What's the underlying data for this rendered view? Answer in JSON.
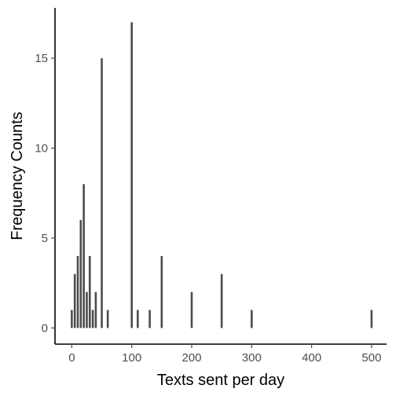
{
  "chart_data": {
    "type": "bar",
    "title": "",
    "xlabel": "Texts sent per day",
    "ylabel": "Frequency Counts",
    "xlim": [
      -28,
      525
    ],
    "ylim": [
      -0.9,
      17.8
    ],
    "x_ticks": [
      0,
      100,
      200,
      300,
      400,
      500
    ],
    "x_tick_labels": [
      "0",
      "100",
      "200",
      "300",
      "400",
      "500"
    ],
    "y_ticks": [
      0,
      5,
      10,
      15
    ],
    "y_tick_labels": [
      "0",
      "5",
      "10",
      "15"
    ],
    "grid": false,
    "legend": "none",
    "points": [
      {
        "x": 0,
        "y": 1
      },
      {
        "x": 5,
        "y": 3
      },
      {
        "x": 10,
        "y": 4
      },
      {
        "x": 15,
        "y": 6
      },
      {
        "x": 20,
        "y": 8
      },
      {
        "x": 25,
        "y": 2
      },
      {
        "x": 30,
        "y": 4
      },
      {
        "x": 35,
        "y": 1
      },
      {
        "x": 40,
        "y": 2
      },
      {
        "x": 50,
        "y": 15
      },
      {
        "x": 60,
        "y": 1
      },
      {
        "x": 100,
        "y": 17
      },
      {
        "x": 110,
        "y": 1
      },
      {
        "x": 130,
        "y": 1
      },
      {
        "x": 150,
        "y": 4
      },
      {
        "x": 200,
        "y": 2
      },
      {
        "x": 250,
        "y": 3
      },
      {
        "x": 300,
        "y": 1
      },
      {
        "x": 500,
        "y": 1
      }
    ],
    "colors": {
      "bar": "#4d4d4d",
      "axis": "#000000",
      "tick_text": "#4d4d4d",
      "title_text": "#000000"
    }
  }
}
